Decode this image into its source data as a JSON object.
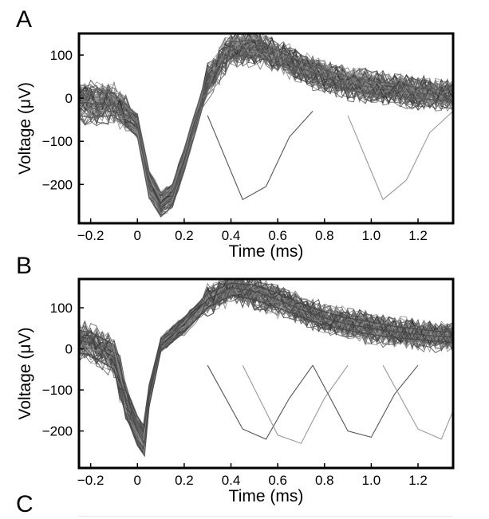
{
  "panels": [
    {
      "letter": "A"
    },
    {
      "letter": "B"
    },
    {
      "letter": "C"
    }
  ],
  "chart_data": [
    {
      "type": "line",
      "panel": "A",
      "title": "",
      "xlabel": "Time (ms)",
      "ylabel": "Voltage (μV)",
      "xlim": [
        -0.25,
        1.35
      ],
      "ylim": [
        -290,
        150
      ],
      "xticks": [
        -0.2,
        0,
        0.2,
        0.4,
        0.6,
        0.8,
        1.0,
        1.2
      ],
      "xtick_labels": [
        "−0.2",
        "0",
        "0.2",
        "0.4",
        "0.6",
        "0.8",
        "1.0",
        "1.2"
      ],
      "yticks": [
        100,
        0,
        -100,
        -200
      ],
      "ytick_labels": [
        "100",
        "0",
        "−100",
        "−200"
      ],
      "grid": false,
      "color": "#5a5a5a",
      "series": [
        {
          "x": [
            -0.25,
            -0.2,
            -0.1,
            0.0,
            0.05,
            0.1,
            0.15,
            0.2,
            0.3,
            0.4,
            0.5,
            0.6,
            0.7,
            0.8,
            0.9,
            1.0,
            1.1,
            1.2,
            1.3,
            1.35
          ],
          "y": [
            -10,
            -12,
            -15,
            -60,
            -200,
            -250,
            -230,
            -150,
            40,
            110,
            118,
            95,
            70,
            50,
            35,
            25,
            18,
            12,
            8,
            5
          ]
        },
        {
          "x": [
            -0.25,
            -0.2,
            -0.1,
            0.0,
            0.05,
            0.1,
            0.15,
            0.2,
            0.3,
            0.4,
            0.5,
            0.6,
            0.7,
            0.8,
            0.9,
            1.0,
            1.1,
            1.2,
            1.3,
            1.35
          ],
          "y": [
            20,
            15,
            10,
            -40,
            -170,
            -220,
            -200,
            -120,
            60,
            130,
            135,
            110,
            85,
            65,
            50,
            40,
            32,
            25,
            20,
            18
          ]
        },
        {
          "x": [
            -0.25,
            -0.2,
            -0.1,
            0.0,
            0.05,
            0.1,
            0.15,
            0.2,
            0.3,
            0.4,
            0.5,
            0.6,
            0.7,
            0.8,
            0.9,
            1.0,
            1.1,
            1.2,
            1.3,
            1.35
          ],
          "y": [
            -40,
            -45,
            -40,
            -90,
            -230,
            -275,
            -250,
            -170,
            20,
            95,
            100,
            80,
            55,
            35,
            20,
            10,
            5,
            0,
            -5,
            -8
          ]
        }
      ],
      "outlier_series": [
        {
          "x": [
            0.3,
            0.45,
            0.55,
            0.65,
            0.75
          ],
          "y": [
            -40,
            -235,
            -205,
            -90,
            -30
          ]
        },
        {
          "x": [
            0.9,
            1.05,
            1.15,
            1.25,
            1.35
          ],
          "y": [
            -40,
            -235,
            -190,
            -80,
            -30
          ]
        }
      ]
    },
    {
      "type": "line",
      "panel": "B",
      "title": "",
      "xlabel": "Time (ms)",
      "ylabel": "Voltage (μV)",
      "xlim": [
        -0.25,
        1.35
      ],
      "ylim": [
        -290,
        170
      ],
      "xticks": [
        -0.2,
        0,
        0.2,
        0.4,
        0.6,
        0.8,
        1.0,
        1.2
      ],
      "xtick_labels": [
        "−0.2",
        "0",
        "0.2",
        "0.4",
        "0.6",
        "0.8",
        "1.0",
        "1.2"
      ],
      "yticks": [
        100,
        0,
        -100,
        -200
      ],
      "ytick_labels": [
        "100",
        "0",
        "−100",
        "−200"
      ],
      "grid": false,
      "color": "#4a4a4a",
      "series": [
        {
          "x": [
            -0.25,
            -0.2,
            -0.1,
            -0.05,
            0.0,
            0.03,
            0.05,
            0.1,
            0.2,
            0.3,
            0.4,
            0.5,
            0.6,
            0.7,
            0.8,
            0.9,
            1.0,
            1.1,
            1.2,
            1.3,
            1.35
          ],
          "y": [
            20,
            15,
            -20,
            -130,
            -200,
            -230,
            -120,
            10,
            60,
            120,
            150,
            140,
            120,
            95,
            75,
            60,
            50,
            42,
            35,
            30,
            28
          ]
        },
        {
          "x": [
            -0.25,
            -0.2,
            -0.1,
            -0.05,
            0.0,
            0.03,
            0.05,
            0.1,
            0.2,
            0.3,
            0.4,
            0.5,
            0.6,
            0.7,
            0.8,
            0.9,
            1.0,
            1.1,
            1.2,
            1.3,
            1.35
          ],
          "y": [
            45,
            40,
            10,
            -100,
            -165,
            -190,
            -90,
            25,
            75,
            135,
            160,
            155,
            135,
            110,
            90,
            75,
            65,
            55,
            48,
            42,
            40
          ]
        },
        {
          "x": [
            -0.25,
            -0.2,
            -0.1,
            -0.05,
            0.0,
            0.03,
            0.05,
            0.1,
            0.2,
            0.3,
            0.4,
            0.5,
            0.6,
            0.7,
            0.8,
            0.9,
            1.0,
            1.1,
            1.2,
            1.3,
            1.35
          ],
          "y": [
            -10,
            -15,
            -50,
            -160,
            -235,
            -260,
            -140,
            -5,
            40,
            100,
            130,
            120,
            100,
            78,
            58,
            45,
            35,
            28,
            22,
            18,
            15
          ]
        }
      ],
      "outlier_series": [
        {
          "x": [
            0.3,
            0.45,
            0.55,
            0.65,
            0.75
          ],
          "y": [
            -40,
            -195,
            -220,
            -120,
            -40
          ]
        },
        {
          "x": [
            0.45,
            0.6,
            0.7,
            0.8,
            0.9
          ],
          "y": [
            -40,
            -210,
            -230,
            -120,
            -40
          ]
        },
        {
          "x": [
            0.75,
            0.9,
            1.0,
            1.1,
            1.2
          ],
          "y": [
            -40,
            -200,
            -215,
            -110,
            -40
          ]
        },
        {
          "x": [
            1.05,
            1.2,
            1.3,
            1.35
          ],
          "y": [
            -40,
            -195,
            -220,
            -150
          ]
        }
      ]
    }
  ]
}
